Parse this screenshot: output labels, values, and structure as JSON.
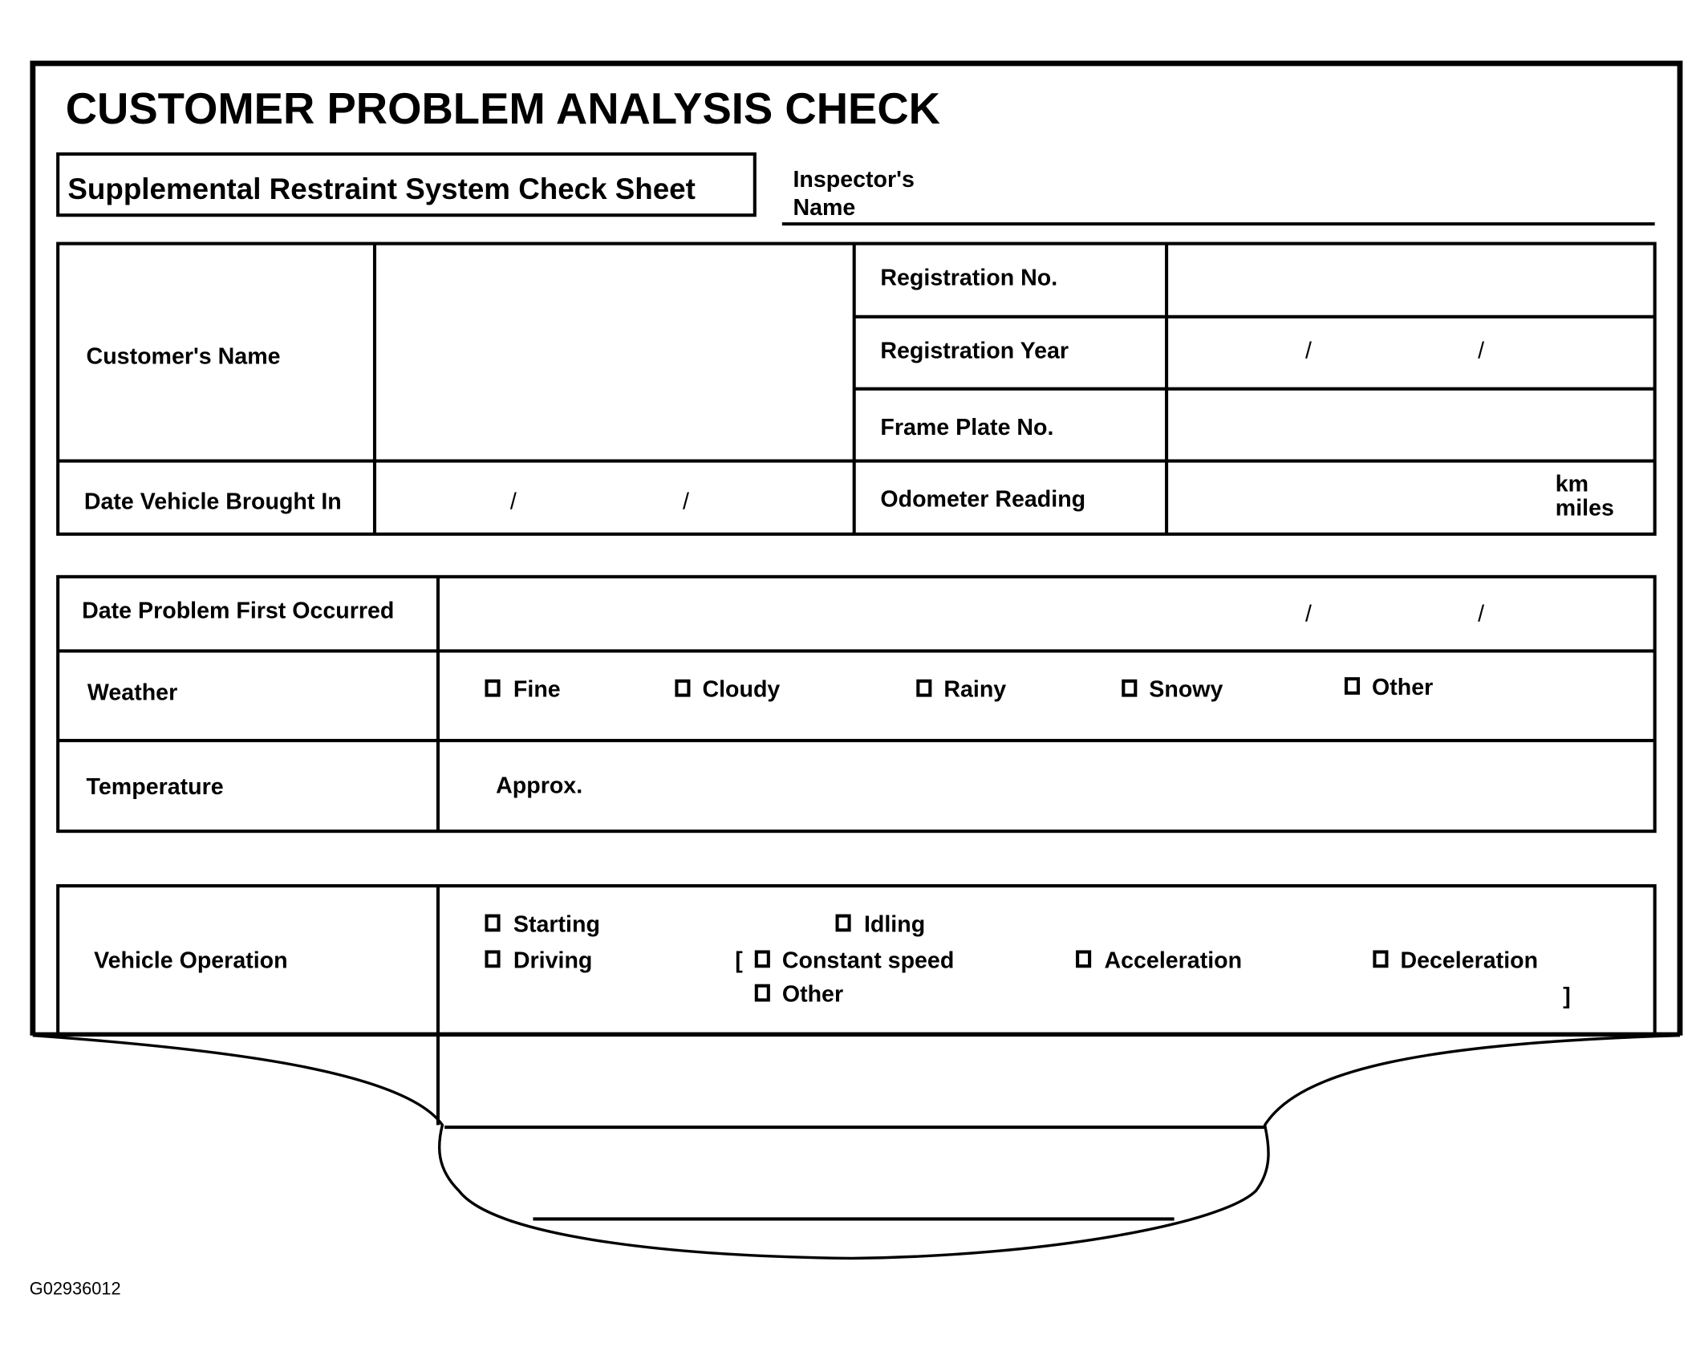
{
  "title": "CUSTOMER PROBLEM ANALYSIS CHECK",
  "subtitle": "Supplemental Restraint System Check Sheet",
  "inspector_label_1": "Inspector's",
  "inspector_label_2": "Name",
  "table1": {
    "customers_name": "Customer's Name",
    "registration_no": "Registration No.",
    "registration_year": "Registration Year",
    "frame_plate_no": "Frame Plate No.",
    "date_brought_in": "Date Vehicle Brought In",
    "odometer_reading": "Odometer Reading",
    "unit_km": "km",
    "unit_miles": "miles",
    "date_separator": "/"
  },
  "table2": {
    "date_first_occurred": "Date Problem First Occurred",
    "weather": "Weather",
    "weather_options": [
      "Fine",
      "Cloudy",
      "Rainy",
      "Snowy",
      "Other"
    ],
    "temperature": "Temperature",
    "approx": "Approx."
  },
  "table3": {
    "vehicle_operation": "Vehicle Operation",
    "options": [
      "Starting",
      "Idling",
      "Driving",
      "Constant speed",
      "Acceleration",
      "Deceleration",
      "Other"
    ],
    "bracket_open": "[",
    "bracket_close": "]"
  },
  "figure_id": "G02936012"
}
